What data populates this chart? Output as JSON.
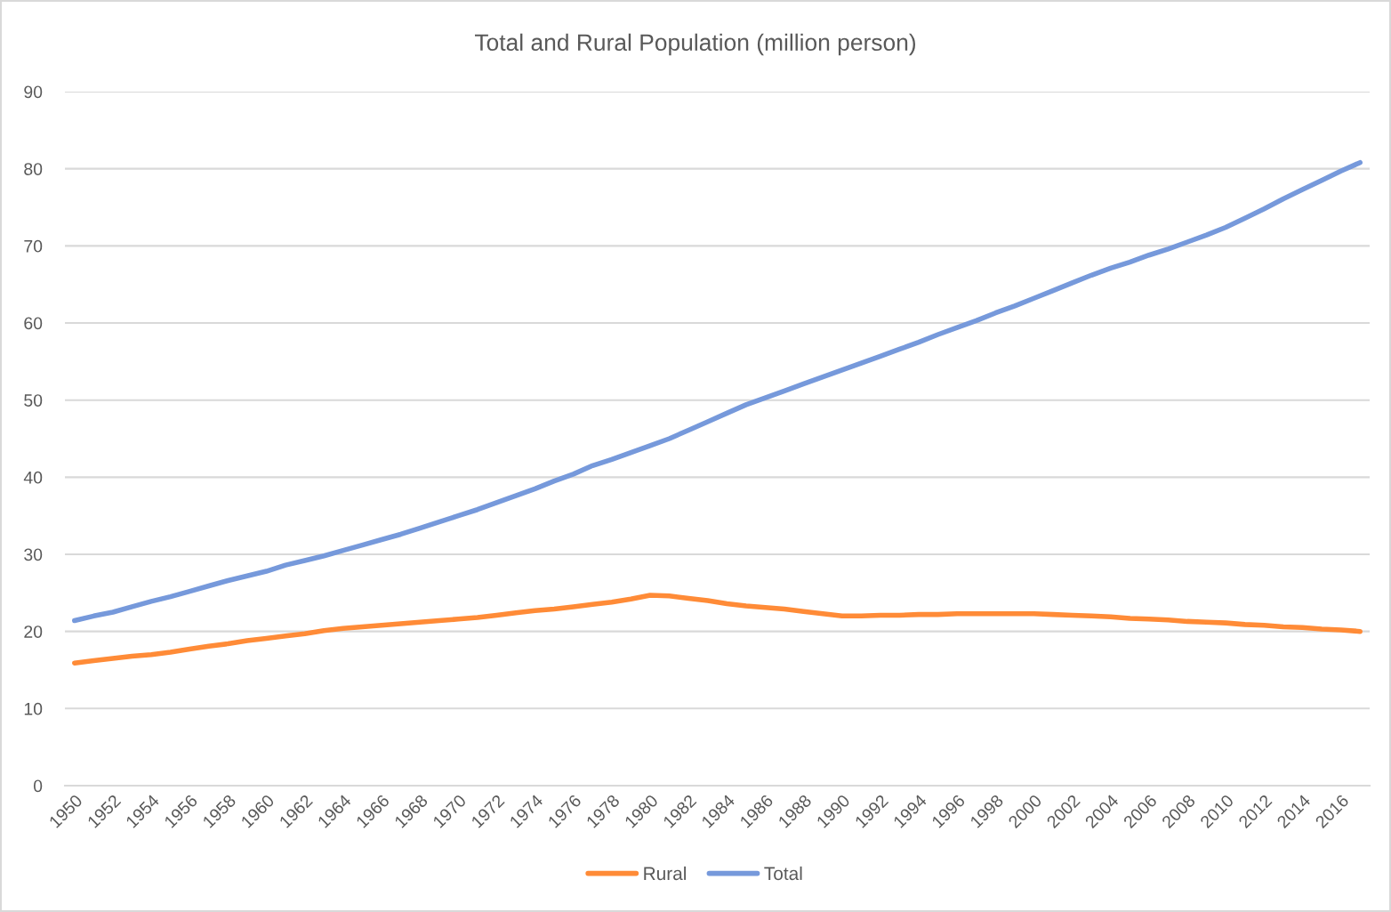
{
  "chart_data": {
    "type": "line",
    "title": "Total and Rural Population (million person)",
    "categories": [
      "1950",
      null,
      "1952",
      null,
      "1954",
      null,
      "1956",
      null,
      "1958",
      null,
      "1960",
      null,
      "1962",
      null,
      "1964",
      null,
      "1966",
      null,
      "1968",
      null,
      "1970",
      null,
      "1972",
      null,
      "1974",
      null,
      "1976",
      null,
      "1978",
      null,
      "1980",
      null,
      "1982",
      null,
      "1984",
      null,
      "1986",
      null,
      "1988",
      null,
      "1990",
      null,
      "1992",
      null,
      "1994",
      null,
      "1996",
      null,
      "1998",
      null,
      "2000",
      null,
      "2002",
      null,
      "2004",
      null,
      "2006",
      null,
      "2008",
      null,
      "2010",
      null,
      "2012",
      null,
      "2014",
      null,
      "2016",
      null
    ],
    "series": [
      {
        "name": "Rural",
        "color": "#ff8b37",
        "values": [
          15.9,
          16.2,
          16.5,
          16.8,
          17.0,
          17.3,
          17.7,
          18.1,
          18.4,
          18.8,
          19.1,
          19.4,
          19.7,
          20.1,
          20.4,
          20.6,
          20.8,
          21.0,
          21.2,
          21.4,
          21.6,
          21.8,
          22.1,
          22.4,
          22.7,
          22.9,
          23.2,
          23.5,
          23.8,
          24.2,
          24.7,
          24.6,
          24.3,
          24.0,
          23.6,
          23.3,
          23.1,
          22.9,
          22.6,
          22.3,
          22.0,
          22.0,
          22.1,
          22.1,
          22.2,
          22.2,
          22.3,
          22.3,
          22.3,
          22.3,
          22.3,
          22.2,
          22.1,
          22.0,
          21.9,
          21.7,
          21.6,
          21.5,
          21.3,
          21.2,
          21.1,
          20.9,
          20.8,
          20.6,
          20.5,
          20.3,
          20.2,
          20.0
        ]
      },
      {
        "name": "Total",
        "color": "#7699db",
        "values": [
          21.4,
          22.0,
          22.5,
          23.2,
          23.9,
          24.5,
          25.2,
          25.9,
          26.6,
          27.2,
          27.8,
          28.6,
          29.2,
          29.8,
          30.5,
          31.2,
          31.9,
          32.6,
          33.4,
          34.2,
          35.0,
          35.8,
          36.7,
          37.6,
          38.5,
          39.5,
          40.4,
          41.5,
          42.3,
          43.2,
          44.1,
          45.0,
          46.1,
          47.2,
          48.3,
          49.4,
          50.3,
          51.2,
          52.1,
          53.0,
          53.9,
          54.8,
          55.7,
          56.6,
          57.5,
          58.5,
          59.4,
          60.3,
          61.3,
          62.2,
          63.2,
          64.2,
          65.2,
          66.2,
          67.1,
          67.9,
          68.8,
          69.6,
          70.5,
          71.4,
          72.4,
          73.6,
          74.8,
          76.1,
          77.3,
          78.5,
          79.7,
          80.8
        ]
      }
    ],
    "ylim": [
      0,
      90
    ],
    "yticks": [
      0,
      10,
      20,
      30,
      40,
      50,
      60,
      70,
      80,
      90
    ],
    "grid": "y",
    "legend": "bottom",
    "line_style": "solid"
  }
}
